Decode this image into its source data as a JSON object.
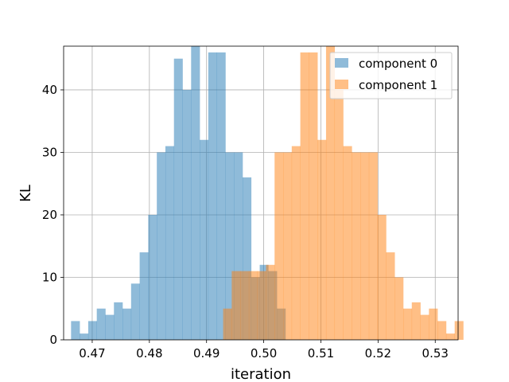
{
  "chart_data": {
    "type": "histogram",
    "xlabel": "iteration",
    "ylabel": "KL",
    "xlim": [
      0.465,
      0.534
    ],
    "ylim": [
      0,
      47
    ],
    "grid": true,
    "legend_position": "top-right",
    "x_ticks": [
      "0.47",
      "0.48",
      "0.49",
      "0.50",
      "0.51",
      "0.52",
      "0.53"
    ],
    "y_ticks": [
      "0",
      "10",
      "20",
      "30",
      "40"
    ],
    "series": [
      {
        "name": "component 0",
        "color": "#1f77b4",
        "opacity": 0.5,
        "bin_start": 0.4663,
        "bin_width": 0.0015,
        "values": [
          3,
          1,
          3,
          5,
          4,
          6,
          5,
          9,
          14,
          20,
          30,
          31,
          45,
          40,
          47,
          32,
          46,
          46,
          30,
          30,
          26,
          10,
          12,
          11,
          5
        ]
      },
      {
        "name": "component 1",
        "color": "#ff7f0e",
        "opacity": 0.5,
        "bin_start": 0.4929,
        "bin_width": 0.0015,
        "values": [
          5,
          11,
          11,
          11,
          11,
          12,
          30,
          30,
          31,
          46,
          46,
          32,
          47,
          40,
          31,
          30,
          30,
          30,
          20,
          14,
          10,
          5,
          6,
          4,
          5,
          3,
          1,
          3
        ]
      }
    ]
  }
}
